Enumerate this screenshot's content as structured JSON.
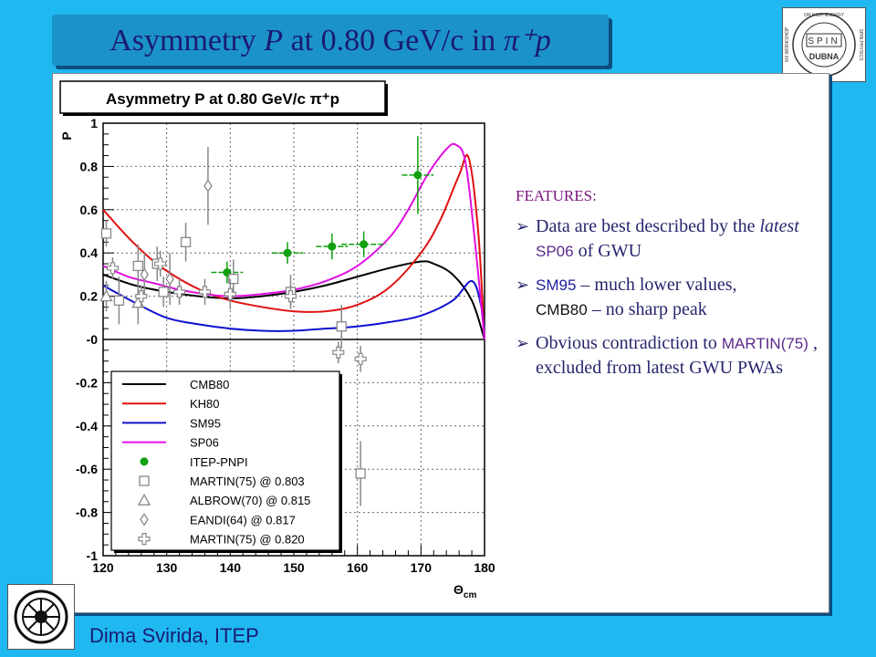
{
  "slide": {
    "title_prefix": "Asymmetry ",
    "title_var": "P",
    "title_mid": " at 0.80 GeV/c in ",
    "title_suffix": "π⁺p",
    "logo_text": "SPIN",
    "logo_lines": [
      "ON HIGH ENERGY",
      "SPIN PHYSICS",
      "DUBNA",
      "XIII WORKSHOP",
      "2009"
    ],
    "footer": "Dima Svirida, ITEP",
    "features": {
      "head": "FEATURES:",
      "item1_a": "Data are best described by the ",
      "item1_i": "latest",
      "item1_b": " SP06",
      "item1_c": " of GWU",
      "item2_a": "SM95",
      "item2_b": " – much lower values,",
      "item2_c": "CMB80",
      "item2_d": " – no sharp peak",
      "item3_a": "Obvious contradiction to ",
      "item3_b": "MARTIN(75)",
      "item3_c": " , excluded from latest GWU PWAs"
    },
    "colors": {
      "CMB80": "#000000",
      "KH80": "#e01010",
      "SM95": "#1010d0",
      "SP06": "#e010e0",
      "ITEP": "#10a010",
      "data": "#888888"
    }
  },
  "chart_data": {
    "type": "scatter",
    "title": "Asymmetry P at 0.80 GeV/c π⁺p",
    "xlabel": "Θcm",
    "ylabel": "P",
    "xlim": [
      120,
      180
    ],
    "ylim": [
      -1,
      1
    ],
    "xticks": [
      "120",
      "130",
      "140",
      "150",
      "160",
      "170",
      "180"
    ],
    "yticks": [
      "-1",
      "-0.8",
      "-0.6",
      "-0.4",
      "-0.2",
      "-0",
      "0.2",
      "0.4",
      "0.6",
      "0.8",
      "1"
    ],
    "grid": true,
    "legend_position": "bottom-left",
    "series": [
      {
        "name": "CMB80",
        "kind": "line",
        "x": [
          120,
          125,
          130,
          135,
          140,
          145,
          150,
          155,
          160,
          165,
          170,
          172,
          175,
          178,
          180
        ],
        "y": [
          0.3,
          0.25,
          0.22,
          0.2,
          0.19,
          0.2,
          0.22,
          0.25,
          0.29,
          0.33,
          0.36,
          0.35,
          0.3,
          0.18,
          0.0
        ]
      },
      {
        "name": "KH80",
        "kind": "line",
        "x": [
          120,
          124,
          128,
          132,
          136,
          140,
          145,
          150,
          155,
          160,
          165,
          170,
          173,
          176,
          177.5,
          179,
          180
        ],
        "y": [
          0.6,
          0.47,
          0.36,
          0.28,
          0.22,
          0.18,
          0.15,
          0.13,
          0.13,
          0.16,
          0.24,
          0.4,
          0.55,
          0.76,
          0.84,
          0.5,
          0.0
        ]
      },
      {
        "name": "SM95",
        "kind": "line",
        "x": [
          120,
          125,
          130,
          135,
          140,
          145,
          150,
          155,
          160,
          165,
          170,
          175,
          178,
          179.5,
          180
        ],
        "y": [
          0.25,
          0.17,
          0.1,
          0.07,
          0.05,
          0.04,
          0.04,
          0.05,
          0.06,
          0.08,
          0.11,
          0.18,
          0.27,
          0.15,
          0.0
        ]
      },
      {
        "name": "SP06",
        "kind": "line",
        "x": [
          120,
          124,
          128,
          132,
          136,
          140,
          145,
          150,
          155,
          160,
          165,
          168,
          171,
          174,
          175.5,
          177,
          178.5,
          180
        ],
        "y": [
          0.34,
          0.29,
          0.26,
          0.23,
          0.21,
          0.2,
          0.21,
          0.23,
          0.27,
          0.34,
          0.47,
          0.6,
          0.76,
          0.88,
          0.9,
          0.82,
          0.45,
          0.0
        ]
      },
      {
        "name": "ITEP-PNPI",
        "kind": "marker",
        "marker": "filled-circle",
        "x": [
          139.5,
          149,
          156,
          161,
          169.5
        ],
        "y": [
          0.31,
          0.4,
          0.43,
          0.44,
          0.76
        ],
        "xerr": [
          2.5,
          2.5,
          2.5,
          3.5,
          2.5
        ],
        "yerr": [
          0.05,
          0.05,
          0.06,
          0.06,
          0.18
        ]
      },
      {
        "name": "MARTIN(75) @ 0.803",
        "kind": "marker",
        "marker": "open-square",
        "x": [
          120.5,
          122.5,
          125.5,
          128.5,
          129.5,
          133,
          140.5,
          149.5,
          157.5,
          160.5
        ],
        "y": [
          0.49,
          0.18,
          0.34,
          0.35,
          0.22,
          0.45,
          0.28,
          0.22,
          0.06,
          -0.62
        ],
        "yerr": [
          0.06,
          0.11,
          0.1,
          0.08,
          0.07,
          0.09,
          0.09,
          0.08,
          0.1,
          0.15
        ]
      },
      {
        "name": "ALBROW(70) @ 0.815",
        "kind": "marker",
        "marker": "open-triangle",
        "x": [
          120.5,
          125.5
        ],
        "y": [
          0.2,
          0.17
        ],
        "yerr": [
          0.07,
          0.1
        ]
      },
      {
        "name": "EANDI(64) @ 0.817",
        "kind": "marker",
        "marker": "open-diamond",
        "x": [
          126.5,
          130.5,
          136.5
        ],
        "y": [
          0.3,
          0.28,
          0.71
        ],
        "yerr": [
          0.1,
          0.12,
          0.18
        ]
      },
      {
        "name": "MARTIN(75) @ 0.820",
        "kind": "marker",
        "marker": "open-cross",
        "x": [
          121.5,
          126,
          129,
          132,
          136,
          140,
          149.5,
          157,
          160.5
        ],
        "y": [
          0.33,
          0.2,
          0.35,
          0.22,
          0.22,
          0.21,
          0.2,
          -0.06,
          -0.09
        ],
        "yerr": [
          0.05,
          0.05,
          0.06,
          0.06,
          0.06,
          0.07,
          0.05,
          0.05,
          0.06
        ]
      }
    ]
  }
}
